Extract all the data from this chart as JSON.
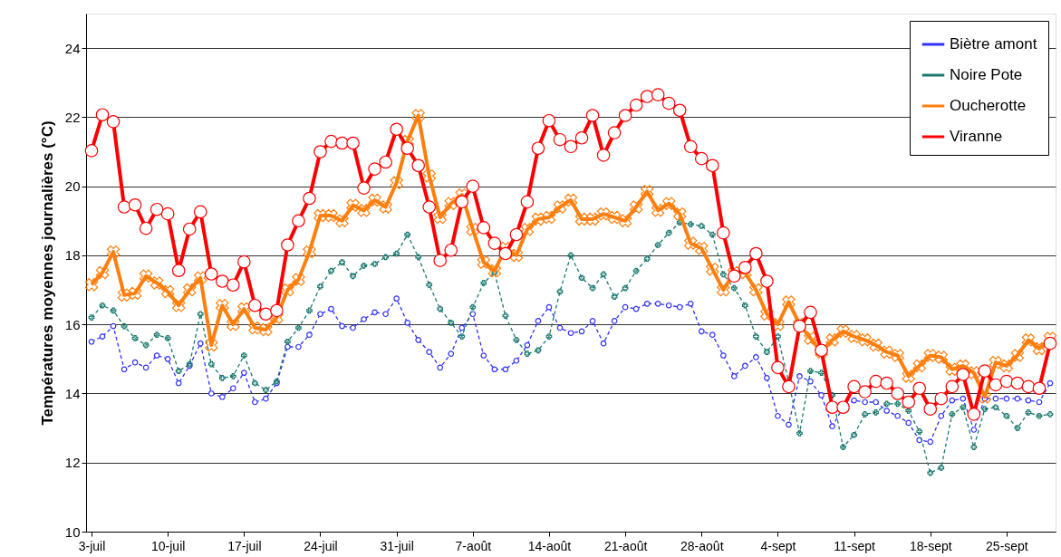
{
  "chart_data": {
    "type": "line",
    "ylabel": "Températures moyennes journalières (°C)",
    "categories": [
      "3-juil",
      null,
      null,
      null,
      null,
      null,
      null,
      "10-juil",
      null,
      null,
      null,
      null,
      null,
      null,
      "17-juil",
      null,
      null,
      null,
      null,
      null,
      null,
      "24-juil",
      null,
      null,
      null,
      null,
      null,
      null,
      "31-juil",
      null,
      null,
      null,
      null,
      null,
      null,
      "7-août",
      null,
      null,
      null,
      null,
      null,
      null,
      "14-août",
      null,
      null,
      null,
      null,
      null,
      null,
      "21-août",
      null,
      null,
      null,
      null,
      null,
      null,
      "28-août",
      null,
      null,
      null,
      null,
      null,
      null,
      "4-sept",
      null,
      null,
      null,
      null,
      null,
      null,
      "11-sept",
      null,
      null,
      null,
      null,
      null,
      null,
      "18-sept",
      null,
      null,
      null,
      null,
      null,
      null,
      "25-sept",
      null,
      null,
      null,
      null
    ],
    "ylim": [
      10,
      25
    ],
    "yticks": [
      10,
      12,
      14,
      16,
      18,
      20,
      22,
      24
    ],
    "grid": "y",
    "legend": "top right",
    "series": [
      {
        "name": "Biètre amont",
        "color": "#3030ff",
        "marker": "circle",
        "line_style": "dashed",
        "values": [
          15.5,
          15.65,
          15.95,
          14.7,
          14.9,
          14.75,
          15.1,
          15.0,
          14.3,
          14.8,
          15.45,
          14.0,
          13.9,
          14.15,
          14.6,
          13.75,
          13.85,
          14.3,
          15.35,
          15.35,
          15.7,
          16.3,
          16.45,
          15.95,
          15.9,
          16.15,
          16.35,
          16.3,
          16.75,
          16.05,
          15.55,
          15.2,
          14.75,
          15.15,
          15.9,
          16.3,
          15.1,
          14.7,
          14.7,
          14.95,
          15.4,
          16.1,
          16.5,
          15.9,
          15.75,
          15.8,
          16.1,
          15.45,
          16.1,
          16.5,
          16.45,
          16.6,
          16.6,
          16.55,
          16.5,
          16.6,
          15.8,
          15.7,
          15.1,
          14.5,
          14.8,
          15.05,
          14.45,
          13.35,
          13.1,
          14.5,
          14.35,
          13.95,
          13.05,
          13.6,
          13.8,
          13.75,
          13.75,
          13.5,
          13.35,
          13.15,
          12.65,
          12.6,
          13.35,
          13.8,
          13.85,
          12.95,
          13.85,
          13.85,
          13.85,
          13.85,
          13.8,
          13.75,
          14.3
        ]
      },
      {
        "name": "Noire Pote",
        "color": "#1a7a70",
        "marker": "cross",
        "line_style": "dashed",
        "values": [
          16.2,
          16.55,
          16.4,
          15.95,
          15.6,
          15.4,
          15.7,
          15.6,
          14.65,
          14.85,
          16.3,
          14.85,
          14.45,
          14.5,
          15.1,
          14.3,
          14.1,
          14.35,
          15.5,
          15.9,
          16.4,
          17.1,
          17.55,
          17.8,
          17.4,
          17.7,
          17.75,
          17.95,
          18.05,
          18.6,
          17.95,
          17.15,
          16.45,
          16.05,
          15.65,
          16.5,
          17.2,
          17.5,
          16.25,
          15.55,
          15.15,
          15.25,
          15.65,
          16.95,
          18.0,
          17.35,
          17.05,
          17.45,
          16.8,
          17.05,
          17.55,
          17.9,
          18.3,
          18.65,
          18.95,
          18.9,
          18.85,
          18.6,
          17.45,
          17.05,
          16.55,
          15.65,
          15.2,
          15.65,
          14.35,
          12.85,
          14.65,
          14.6,
          13.95,
          12.45,
          12.8,
          13.4,
          13.45,
          13.7,
          13.7,
          13.5,
          12.9,
          11.7,
          11.85,
          13.4,
          13.6,
          12.45,
          13.55,
          13.6,
          13.35,
          13.0,
          13.45,
          13.35,
          13.4
        ]
      },
      {
        "name": "Oucherotte",
        "color": "#ff7f0e",
        "marker": "cross",
        "line_style": "solid",
        "values": [
          17.15,
          17.5,
          18.1,
          16.85,
          16.9,
          17.4,
          17.2,
          16.95,
          16.55,
          17.0,
          17.35,
          15.4,
          16.55,
          16.0,
          16.45,
          15.9,
          15.85,
          16.2,
          17.0,
          17.3,
          18.1,
          19.15,
          19.15,
          19.0,
          19.45,
          19.3,
          19.6,
          19.4,
          20.1,
          21.3,
          22.05,
          20.3,
          19.1,
          19.5,
          19.75,
          18.75,
          17.8,
          17.55,
          18.2,
          18.0,
          18.75,
          19.05,
          19.1,
          19.4,
          19.6,
          19.05,
          19.05,
          19.2,
          19.1,
          19.0,
          19.4,
          19.85,
          19.3,
          19.5,
          19.2,
          18.35,
          18.2,
          17.6,
          17.0,
          17.5,
          17.5,
          17.0,
          16.3,
          16.0,
          16.65,
          16.0,
          15.6,
          15.2,
          15.55,
          15.8,
          15.65,
          15.55,
          15.4,
          15.2,
          15.1,
          14.5,
          14.8,
          15.1,
          15.05,
          14.7,
          14.8,
          14.6,
          13.9,
          14.9,
          14.8,
          15.1,
          15.55,
          15.3,
          15.6
        ]
      },
      {
        "name": "Viranne",
        "color": "#ff0000",
        "marker": "circle",
        "line_style": "solid",
        "values": [
          21.03,
          22.07,
          21.87,
          19.4,
          19.46,
          18.78,
          19.33,
          19.2,
          17.56,
          18.76,
          19.26,
          17.46,
          17.25,
          17.14,
          17.81,
          16.55,
          16.3,
          16.4,
          18.3,
          19.0,
          19.65,
          21.0,
          21.3,
          21.25,
          21.25,
          19.95,
          20.5,
          20.7,
          21.65,
          21.1,
          20.6,
          19.4,
          17.85,
          18.15,
          19.55,
          20.0,
          18.8,
          18.35,
          18.05,
          18.6,
          19.55,
          21.1,
          21.9,
          21.35,
          21.15,
          21.4,
          22.05,
          20.9,
          21.55,
          22.05,
          22.35,
          22.6,
          22.65,
          22.4,
          22.2,
          21.15,
          20.8,
          20.6,
          18.65,
          17.4,
          17.65,
          18.05,
          17.25,
          14.75,
          14.2,
          15.95,
          16.35,
          15.25,
          13.6,
          13.6,
          14.2,
          14.05,
          14.35,
          14.3,
          14.0,
          13.75,
          14.15,
          13.55,
          13.85,
          14.2,
          14.55,
          13.4,
          14.65,
          14.25,
          14.35,
          14.3,
          14.2,
          14.15,
          15.45
        ]
      }
    ]
  }
}
